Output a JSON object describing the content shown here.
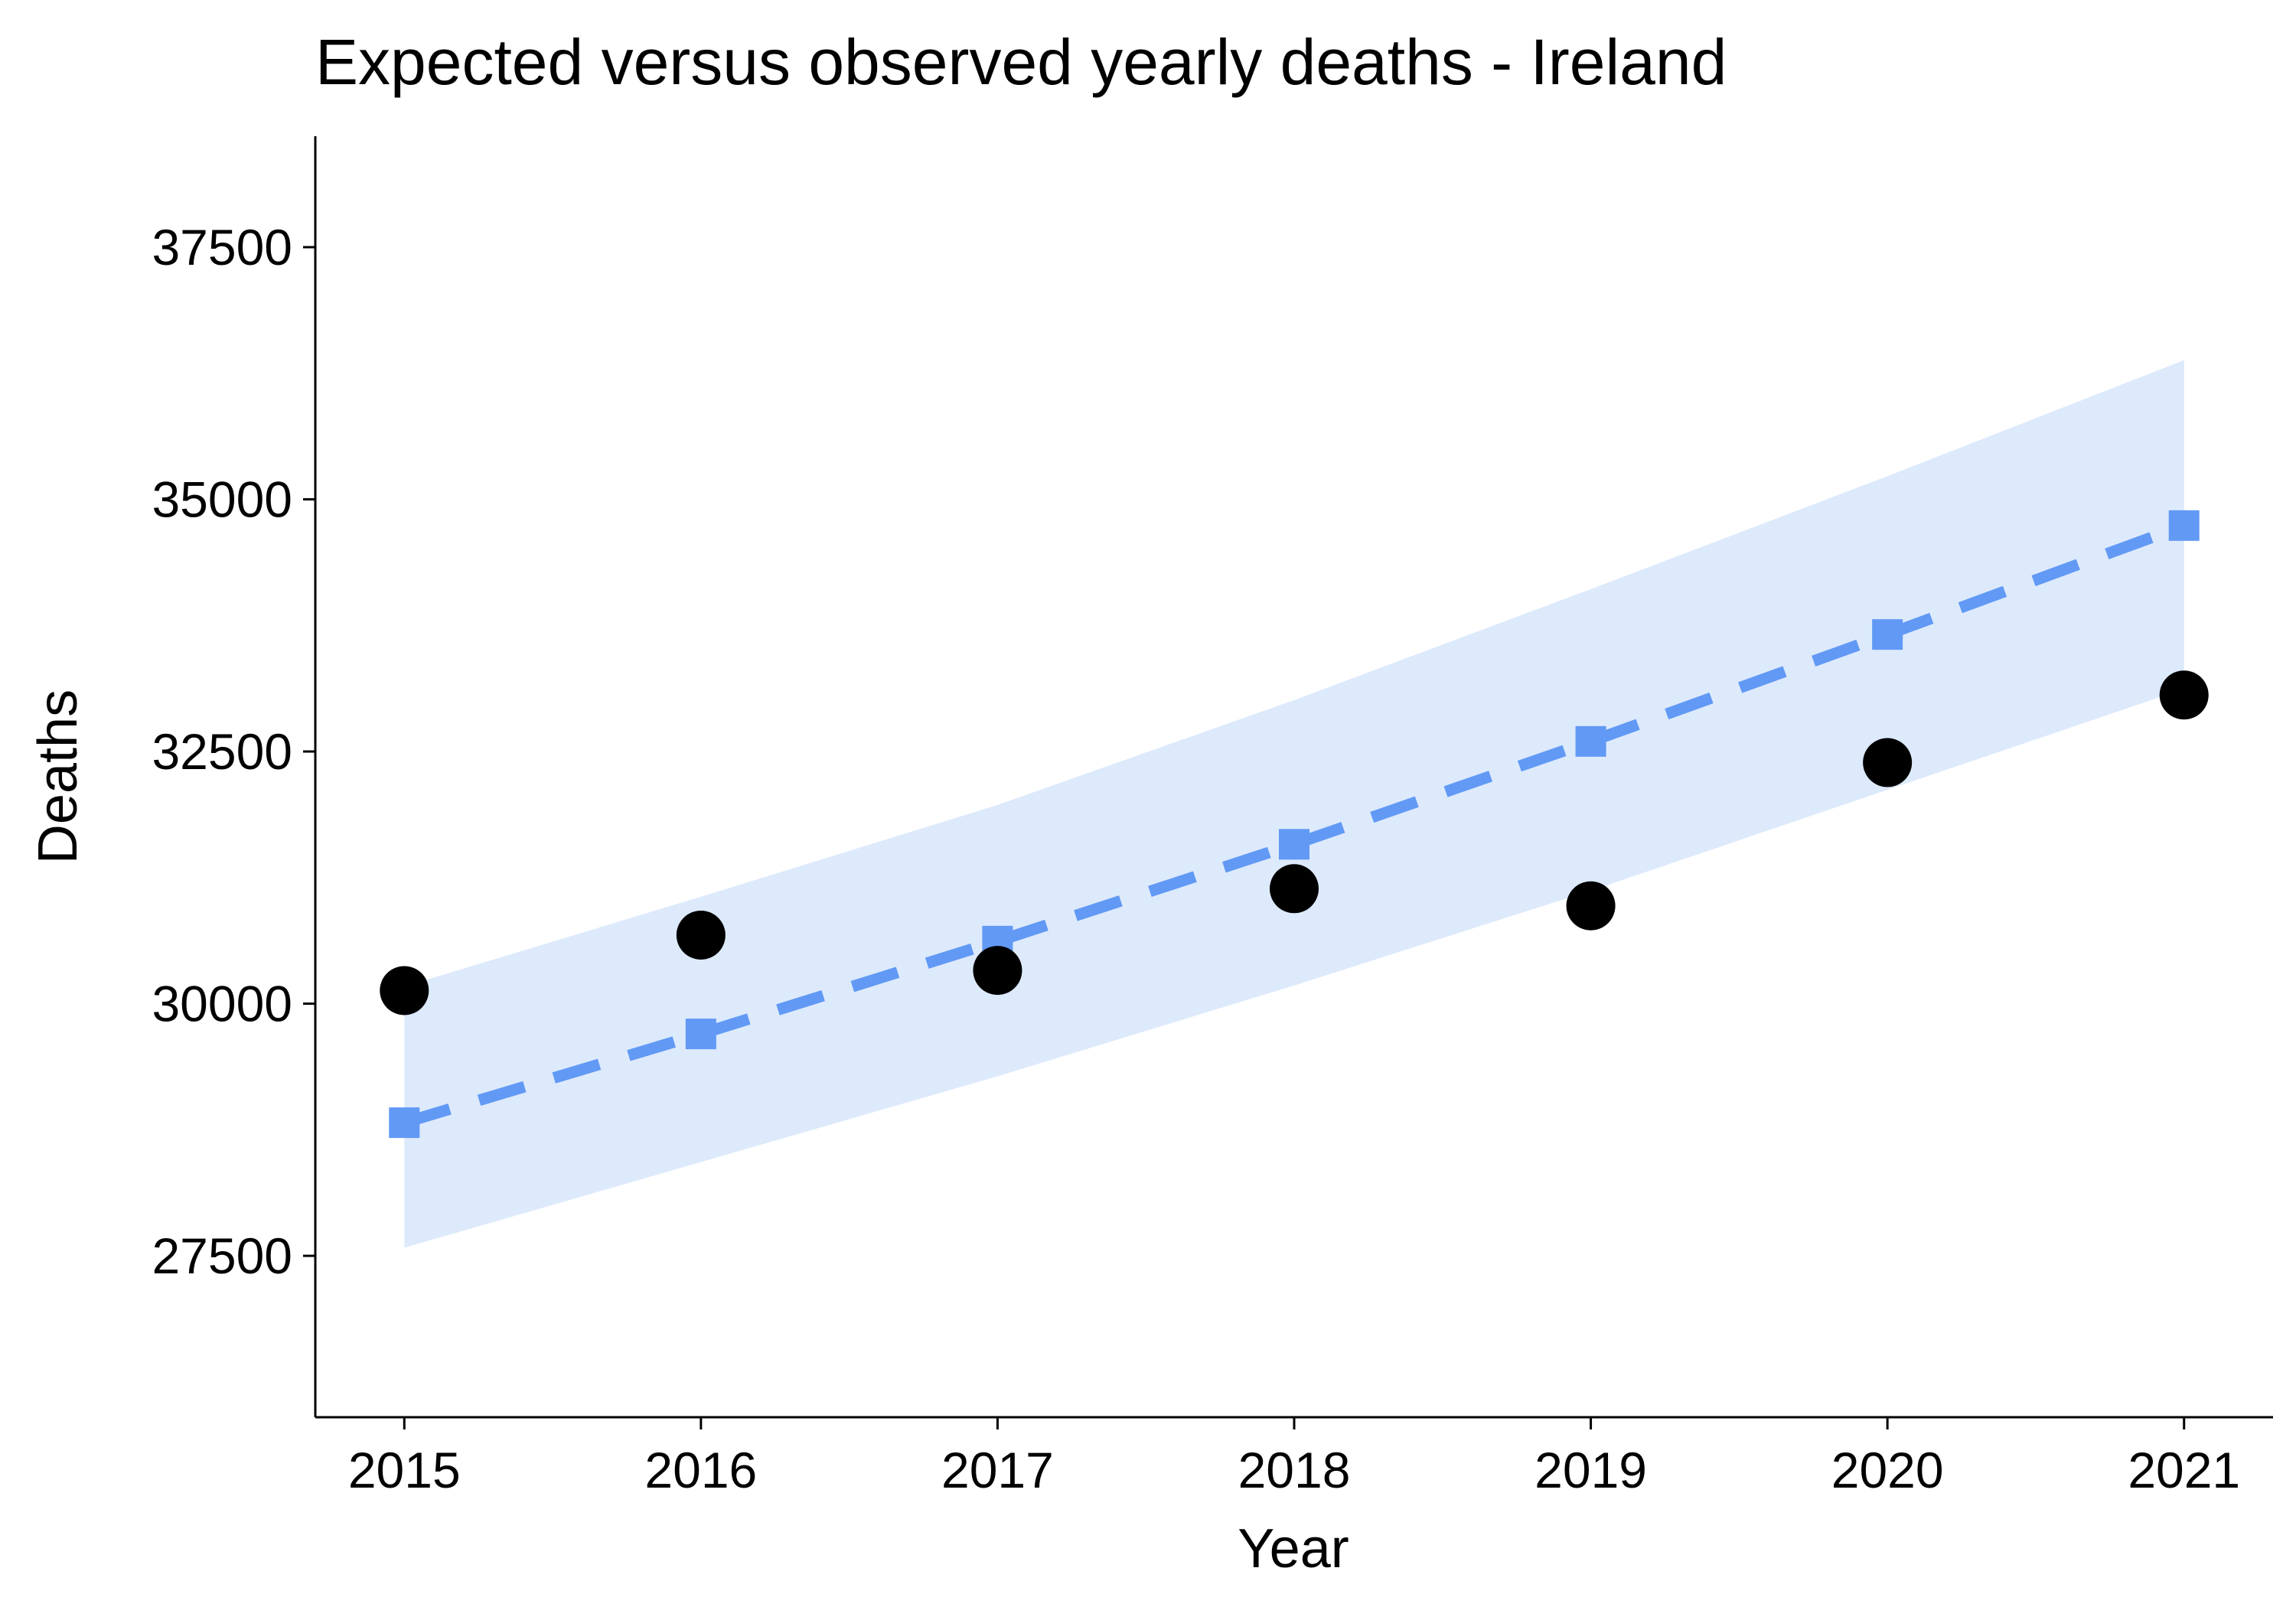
{
  "chart_data": {
    "type": "line",
    "title": "Expected versus observed yearly deaths - Ireland",
    "xlabel": "Year",
    "ylabel": "Deaths",
    "x": [
      2015,
      2016,
      2017,
      2018,
      2019,
      2020,
      2021
    ],
    "x_ticks": [
      "2015",
      "2016",
      "2017",
      "2018",
      "2019",
      "2020",
      "2021"
    ],
    "y_ticks": [
      27500,
      30000,
      32500,
      35000,
      37500
    ],
    "y_tick_labels": [
      "27500",
      "30000",
      "32500",
      "35000",
      "37500"
    ],
    "ylim": [
      25900,
      38600
    ],
    "xlim": [
      2014.7,
      2021.3
    ],
    "grid": false,
    "series": [
      {
        "role": "expected",
        "style": "dashed line with square markers",
        "color": "#6199F5",
        "values": [
          28820,
          29700,
          30620,
          31580,
          32600,
          33660,
          34740
        ]
      },
      {
        "role": "observed",
        "style": "circle markers",
        "color": "#000000",
        "values": [
          30130,
          30680,
          30330,
          31140,
          30970,
          32390,
          33060
        ]
      }
    ],
    "band": {
      "role": "prediction interval",
      "color": "#DDEAFC",
      "lower": [
        27580,
        28430,
        29280,
        30180,
        31120,
        32120,
        33120
      ],
      "upper": [
        30170,
        31060,
        31970,
        33010,
        34110,
        35230,
        36380
      ]
    }
  }
}
